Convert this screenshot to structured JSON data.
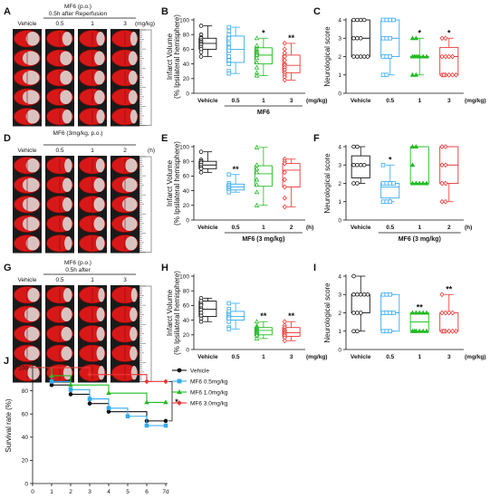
{
  "colors": {
    "vehicle": "#111111",
    "low": "#33aaee",
    "mid": "#22bb22",
    "high": "#ee3333",
    "brain_red": "#d81818",
    "brain_dark": "#8a0c0c",
    "infarct": "#d9d3d0"
  },
  "photos": [
    {
      "id": "A",
      "header_top": "MF6 (p.o.)",
      "header_sub": "0.5h after Reperfusion",
      "columns": [
        "Vehicle",
        "0.5",
        "1",
        "3"
      ],
      "unit": "(mg/kg)",
      "infarct_fraction": [
        0.62,
        0.45,
        0.38,
        0.32
      ]
    },
    {
      "id": "D",
      "header_top": "MF6 (3mg/kg, p.o.)",
      "header_sub": "",
      "columns": [
        "Vehicle",
        "0.5",
        "1",
        "2"
      ],
      "unit": "(h)",
      "infarct_fraction": [
        0.62,
        0.35,
        0.4,
        0.55
      ]
    },
    {
      "id": "G",
      "header_top": "MF6 (p.o.)",
      "header_sub": "0.5h after",
      "columns": [
        "Vehicle",
        "0.5",
        "1",
        "3"
      ],
      "unit": "",
      "infarct_fraction": [
        0.55,
        0.4,
        0.3,
        0.28
      ]
    }
  ],
  "chart_data": [
    {
      "id": "B",
      "type": "box",
      "ylabel": "Infarct Volume",
      "ylabel2": "(% Ipsilateral hemisphere)",
      "categories": [
        "Vehicle",
        "0.5",
        "1",
        "3"
      ],
      "group_label": "MF6",
      "unit": "(mg/kg)",
      "ylim": [
        0,
        100
      ],
      "yticks": [
        0,
        20,
        40,
        60,
        80,
        100
      ],
      "significance": [
        "",
        "",
        "*",
        "**"
      ],
      "boxes": [
        {
          "min": 50,
          "q1": 60,
          "median": 68,
          "q3": 75,
          "max": 92,
          "points": [
            92,
            80,
            76,
            75,
            72,
            70,
            68,
            66,
            63,
            60,
            56,
            50
          ]
        },
        {
          "min": 27,
          "q1": 42,
          "median": 60,
          "q3": 78,
          "max": 90,
          "points": [
            90,
            85,
            80,
            75,
            68,
            62,
            58,
            50,
            45,
            40,
            30,
            27
          ]
        },
        {
          "min": 24,
          "q1": 40,
          "median": 52,
          "q3": 62,
          "max": 75,
          "points": [
            75,
            65,
            60,
            57,
            55,
            52,
            48,
            42,
            35,
            28,
            24
          ]
        },
        {
          "min": 18,
          "q1": 28,
          "median": 38,
          "q3": 52,
          "max": 68,
          "points": [
            68,
            60,
            55,
            50,
            45,
            40,
            38,
            35,
            32,
            28,
            25,
            22,
            18
          ]
        }
      ]
    },
    {
      "id": "C",
      "type": "box",
      "ylabel": "Neurological score",
      "categories": [
        "Vehicle",
        "0.5",
        "1",
        "3"
      ],
      "group_label": "",
      "unit": "(mg/kg)",
      "ylim": [
        0,
        4
      ],
      "yticks": [
        0,
        1,
        2,
        3,
        4
      ],
      "significance": [
        "",
        "",
        "*",
        "*"
      ],
      "boxes": [
        {
          "min": 2,
          "q1": 2,
          "median": 3,
          "q3": 4,
          "max": 4,
          "points": [
            4,
            4,
            4,
            4,
            3,
            3,
            3,
            2,
            2,
            2,
            2,
            2
          ]
        },
        {
          "min": 1,
          "q1": 2,
          "median": 3,
          "q3": 4,
          "max": 4,
          "points": [
            4,
            4,
            4,
            4,
            3,
            3,
            3,
            2,
            2,
            2,
            1,
            1
          ]
        },
        {
          "min": 1,
          "q1": 2,
          "median": 2,
          "q3": 2,
          "max": 3,
          "points": [
            3,
            3,
            2,
            2,
            2,
            2,
            2,
            2,
            2,
            1,
            1
          ]
        },
        {
          "min": 1,
          "q1": 1,
          "median": 2,
          "q3": 2.5,
          "max": 3,
          "points": [
            3,
            3,
            2,
            2,
            2,
            2,
            1,
            1,
            1,
            1,
            1,
            1
          ]
        }
      ]
    },
    {
      "id": "E",
      "type": "box",
      "ylabel": "Infarct Volume",
      "ylabel2": "(% Ipsilateral hemisphere)",
      "categories": [
        "Vehicle",
        "0.5",
        "1",
        "2"
      ],
      "group_label": "MF6 (3 mg/kg)",
      "unit": "(h)",
      "ylim": [
        0,
        100
      ],
      "yticks": [
        0,
        20,
        40,
        60,
        80,
        100
      ],
      "significance": [
        "",
        "**",
        "",
        ""
      ],
      "boxes": [
        {
          "min": 65,
          "q1": 70,
          "median": 75,
          "q3": 80,
          "max": 93,
          "points": [
            93,
            82,
            80,
            78,
            75,
            72,
            70,
            65
          ]
        },
        {
          "min": 38,
          "q1": 41,
          "median": 45,
          "q3": 49,
          "max": 62,
          "points": [
            62,
            50,
            48,
            46,
            44,
            42,
            40,
            38
          ]
        },
        {
          "min": 20,
          "q1": 46,
          "median": 63,
          "q3": 74,
          "max": 99,
          "points": [
            99,
            75,
            70,
            65,
            55,
            48,
            38,
            20
          ]
        },
        {
          "min": 18,
          "q1": 45,
          "median": 68,
          "q3": 77,
          "max": 83,
          "points": [
            83,
            80,
            77,
            65,
            55,
            45,
            30,
            18
          ]
        }
      ]
    },
    {
      "id": "F",
      "type": "box",
      "ylabel": "Neurological score",
      "categories": [
        "Vehicle",
        "0.5",
        "1",
        "2"
      ],
      "group_label": "MF6 (3 mg/kg)",
      "unit": "(h)",
      "ylim": [
        0,
        4
      ],
      "yticks": [
        0,
        1,
        2,
        3,
        4
      ],
      "significance": [
        "",
        "*",
        "",
        ""
      ],
      "boxes": [
        {
          "min": 2,
          "q1": 2.3,
          "median": 3,
          "q3": 3.5,
          "max": 4,
          "points": [
            4,
            4,
            3,
            3,
            3,
            3,
            2,
            2
          ]
        },
        {
          "min": 1,
          "q1": 1.2,
          "median": 1.8,
          "q3": 2,
          "max": 3,
          "points": [
            3,
            2,
            2,
            2,
            2,
            1,
            1,
            1
          ]
        },
        {
          "min": 2,
          "q1": 2,
          "median": 2,
          "q3": 4,
          "max": 4,
          "points": [
            4,
            4,
            3,
            2,
            2,
            2,
            2,
            2
          ]
        },
        {
          "min": 1,
          "q1": 2,
          "median": 3,
          "q3": 4,
          "max": 4,
          "points": [
            4,
            4,
            3,
            3,
            2,
            2,
            1,
            1
          ]
        }
      ]
    },
    {
      "id": "H",
      "type": "box",
      "ylabel": "Infarct Volume",
      "ylabel2": "(% Ipsilateral hemisphere)",
      "categories": [
        "Vehicle",
        "0.5",
        "1",
        "3"
      ],
      "group_label": "",
      "unit": "(mg/kg)",
      "ylim": [
        0,
        100
      ],
      "yticks": [
        0,
        20,
        40,
        60,
        80,
        100
      ],
      "significance": [
        "",
        "",
        "**",
        "**"
      ],
      "boxes": [
        {
          "min": 38,
          "q1": 45,
          "median": 55,
          "q3": 66,
          "max": 70,
          "points": [
            70,
            66,
            62,
            60,
            56,
            54,
            50,
            46,
            42,
            38
          ]
        },
        {
          "min": 28,
          "q1": 40,
          "median": 45,
          "q3": 52,
          "max": 63,
          "points": [
            63,
            55,
            52,
            48,
            46,
            44,
            42,
            38,
            30,
            28
          ]
        },
        {
          "min": 15,
          "q1": 20,
          "median": 26,
          "q3": 30,
          "max": 38,
          "points": [
            38,
            32,
            30,
            28,
            26,
            25,
            23,
            21,
            19,
            15
          ]
        },
        {
          "min": 12,
          "q1": 18,
          "median": 23,
          "q3": 30,
          "max": 38,
          "points": [
            38,
            33,
            30,
            27,
            25,
            23,
            21,
            19,
            16,
            12
          ]
        }
      ]
    },
    {
      "id": "I",
      "type": "box",
      "ylabel": "Neurological score",
      "categories": [
        "Vehicle",
        "0.5",
        "1",
        "3"
      ],
      "group_label": "",
      "unit": "(mg/kg)",
      "ylim": [
        0,
        4
      ],
      "yticks": [
        0,
        1,
        2,
        3,
        4
      ],
      "significance": [
        "",
        "",
        "**",
        "**"
      ],
      "boxes": [
        {
          "min": 1,
          "q1": 2,
          "median": 3,
          "q3": 3,
          "max": 4,
          "points": [
            4,
            3,
            3,
            3,
            3,
            3,
            2,
            2,
            2,
            1,
            1
          ]
        },
        {
          "min": 1,
          "q1": 1,
          "median": 2,
          "q3": 3,
          "max": 3,
          "points": [
            3,
            3,
            3,
            2,
            2,
            2,
            2,
            1,
            1,
            1
          ]
        },
        {
          "min": 1,
          "q1": 1,
          "median": 1.5,
          "q3": 2,
          "max": 2,
          "points": [
            2,
            2,
            2,
            2,
            2,
            1,
            1,
            1,
            1,
            1,
            1
          ]
        },
        {
          "min": 1,
          "q1": 1,
          "median": 1,
          "q3": 2,
          "max": 3,
          "points": [
            3,
            2,
            2,
            2,
            2,
            1,
            1,
            1,
            1,
            1,
            1
          ]
        }
      ]
    },
    {
      "id": "J",
      "type": "line",
      "subtype": "kaplan-meier",
      "ylabel": "Survival rate (%)",
      "xlim": [
        0,
        7
      ],
      "ylim": [
        0,
        100
      ],
      "xticks": [
        0,
        1,
        2,
        3,
        4,
        5,
        6,
        7
      ],
      "xtick_suffix_last": "d",
      "yticks": [
        0,
        20,
        40,
        60,
        80,
        100
      ],
      "legend_position": "right",
      "significance": "*",
      "series": [
        {
          "name": "Vehicle",
          "color": "#111111",
          "marker": "circle",
          "x": [
            0,
            1,
            2,
            3,
            4,
            5,
            6,
            7
          ],
          "y": [
            100,
            85,
            77,
            69,
            62,
            62,
            54,
            54
          ]
        },
        {
          "name": "MF6 0.5mg/kg",
          "color": "#33aaee",
          "marker": "square",
          "x": [
            0,
            1,
            2,
            3,
            4,
            5,
            6,
            7
          ],
          "y": [
            100,
            88,
            81,
            73,
            65,
            58,
            50,
            50
          ]
        },
        {
          "name": "MF6 1.0mg/kg",
          "color": "#22bb22",
          "marker": "triangle",
          "x": [
            0,
            1,
            2,
            3,
            4,
            5,
            6,
            7
          ],
          "y": [
            100,
            93,
            85,
            85,
            78,
            78,
            70,
            70
          ]
        },
        {
          "name": "MF6 3.0mg/kg",
          "color": "#ee3333",
          "marker": "diamond",
          "x": [
            0,
            1,
            2,
            3,
            4,
            5,
            6,
            7
          ],
          "y": [
            100,
            100,
            100,
            94,
            94,
            94,
            88,
            88
          ]
        }
      ]
    }
  ]
}
